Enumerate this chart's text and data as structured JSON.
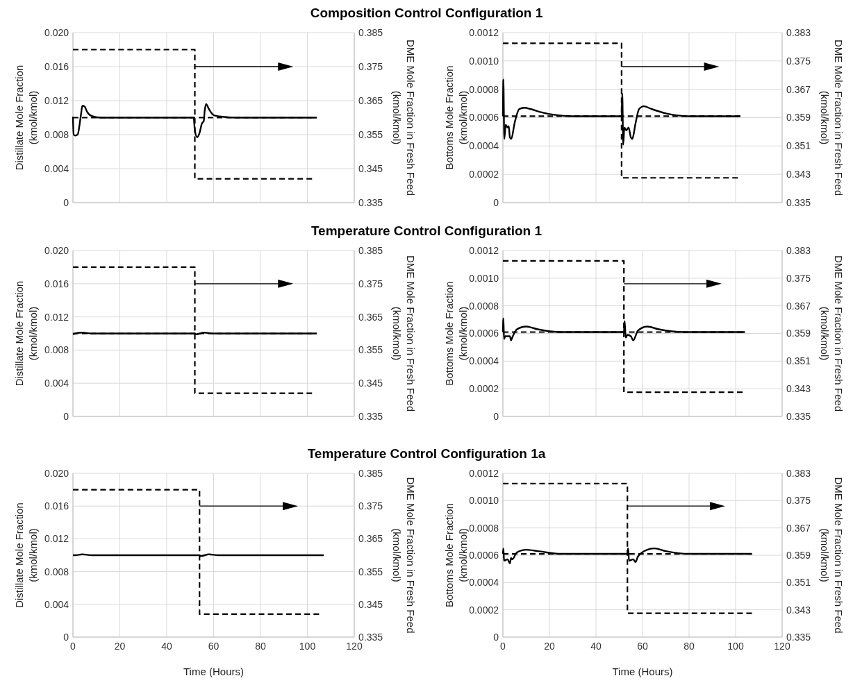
{
  "chart_data": [
    {
      "type": "line",
      "title": "Composition Control Configuration 1",
      "ylabel": "Distillate Mole Fraction (kmol/kmol)",
      "y2label": "DME Mole Fraction in Fresh Feed (kmol/kmol)",
      "xlim": [
        0,
        120
      ],
      "xticks": [
        0,
        20,
        40,
        60,
        80,
        100,
        120
      ],
      "ylim": [
        0,
        0.02
      ],
      "yticks": [
        0,
        0.004,
        0.008,
        0.012,
        0.016,
        {
          "value": 0.02,
          "label": "0.020"
        }
      ],
      "y2lim": [
        0.335,
        0.385
      ],
      "y2ticks": [
        0.335,
        0.345,
        0.355,
        0.365,
        0.375,
        0.385
      ],
      "grid": true,
      "tick_labels": "y",
      "series": [
        {
          "type": "line",
          "color": "#000000",
          "line_style": "solid",
          "x": [
            0,
            0.3,
            1,
            2,
            3,
            3.5,
            4,
            5,
            6,
            8,
            12,
            20,
            40,
            51.5,
            52,
            53,
            54,
            55,
            55.8,
            56.2,
            56.8,
            58,
            60,
            64,
            70,
            104
          ],
          "values": [
            0.0101,
            0.008,
            0.0079,
            0.008,
            0.0095,
            0.0105,
            0.0114,
            0.0113,
            0.0107,
            0.0102,
            0.01,
            0.01,
            0.01,
            0.01,
            0.0085,
            0.0077,
            0.0082,
            0.0093,
            0.0096,
            0.0108,
            0.0116,
            0.011,
            0.0103,
            0.0101,
            0.01,
            0.01
          ]
        },
        {
          "type": "line",
          "color": "#000000",
          "line_style": "dashed",
          "x": [
            0,
            102
          ],
          "values": [
            0.01,
            0.01
          ]
        },
        {
          "type": "step",
          "axis": "y2",
          "color": "#000000",
          "line_style": "dashed",
          "x": [
            0,
            52,
            102
          ],
          "values": [
            0.38,
            0.342,
            0.342
          ]
        }
      ]
    },
    {
      "type": "line",
      "ylabel": "Bottoms Mole Fraction (kmol/kmol)",
      "y2label": "DME Mole Fraction in Fresh Feed (kmol/kmol)",
      "xlim": [
        0,
        120
      ],
      "xticks": [
        0,
        20,
        40,
        60,
        80,
        100,
        120
      ],
      "ylim": [
        0,
        0.0012
      ],
      "yticks": [
        0,
        0.0002,
        0.0004,
        0.0006,
        0.0008,
        {
          "value": 0.001,
          "label": "0.0010"
        },
        {
          "value": 0.0012,
          "label": "0.0012"
        }
      ],
      "y2lim": [
        0.335,
        0.383
      ],
      "y2ticks": [
        0.335,
        0.343,
        0.351,
        0.359,
        0.367,
        0.375,
        0.383
      ],
      "grid": true,
      "tick_labels": "y",
      "series": [
        {
          "type": "line",
          "color": "#000000",
          "line_style": "solid",
          "x": [
            0,
            0.2,
            0.6,
            1.2,
            2,
            2.5,
            3,
            3.6,
            5,
            7,
            9.2,
            12,
            16,
            22,
            30,
            51,
            51.3,
            51.7,
            52.2,
            53,
            54,
            55,
            55.6,
            57,
            58.5,
            60.5,
            64,
            70,
            80,
            102
          ],
          "values": [
            0.00061,
            0.00087,
            0.00045,
            0.00055,
            0.00053,
            0.00054,
            0.00046,
            0.00045,
            0.00056,
            0.00066,
            0.00067,
            0.00066,
            0.00064,
            0.00062,
            0.00061,
            0.00061,
            0.00077,
            0.00041,
            0.00053,
            0.00051,
            0.00053,
            0.00046,
            0.00045,
            0.00056,
            0.00066,
            0.00068,
            0.00066,
            0.00063,
            0.00061,
            0.00061
          ]
        },
        {
          "type": "line",
          "color": "#000000",
          "line_style": "dashed",
          "x": [
            0,
            102
          ],
          "values": [
            0.00061,
            0.00061
          ]
        },
        {
          "type": "step",
          "axis": "y2",
          "color": "#000000",
          "line_style": "dashed",
          "x": [
            0,
            51,
            101
          ],
          "values": [
            0.38,
            0.342,
            0.342
          ]
        }
      ]
    },
    {
      "type": "line",
      "title": "Temperature Control Configuration 1",
      "ylabel": "Distillate Mole Fraction (kmol/kmol)",
      "y2label": "DME Mole Fraction in Fresh Feed (kmol/kmol)",
      "xlim": [
        0,
        120
      ],
      "xticks": [
        0,
        20,
        40,
        60,
        80,
        100,
        120
      ],
      "ylim": [
        0,
        0.02
      ],
      "yticks": [
        0,
        0.004,
        0.008,
        0.012,
        0.016,
        {
          "value": 0.02,
          "label": "0.020"
        }
      ],
      "y2lim": [
        0.335,
        0.385
      ],
      "y2ticks": [
        0.335,
        0.345,
        0.355,
        0.365,
        0.375,
        0.385
      ],
      "grid": true,
      "tick_labels": "y",
      "series": [
        {
          "type": "line",
          "color": "#000000",
          "line_style": "solid",
          "x": [
            0,
            1,
            4,
            8,
            20,
            52,
            52.5,
            56,
            60,
            70,
            104
          ],
          "values": [
            0.0099,
            0.01,
            0.0101,
            0.01,
            0.01,
            0.01,
            0.0099,
            0.0101,
            0.01,
            0.01,
            0.01
          ]
        },
        {
          "type": "line",
          "color": "#000000",
          "line_style": "dashed",
          "x": [
            0,
            102
          ],
          "values": [
            0.01,
            0.01
          ]
        },
        {
          "type": "step",
          "axis": "y2",
          "color": "#000000",
          "line_style": "dashed",
          "x": [
            0,
            52,
            102
          ],
          "values": [
            0.38,
            0.342,
            0.342
          ]
        }
      ]
    },
    {
      "type": "line",
      "ylabel": "Bottoms Mole Fraction (kmol/kmol)",
      "y2label": "DME Mole Fraction in Fresh Feed (kmol/kmol)",
      "xlim": [
        0,
        120
      ],
      "xticks": [
        0,
        20,
        40,
        60,
        80,
        100,
        120
      ],
      "ylim": [
        0,
        0.0012
      ],
      "yticks": [
        0,
        0.0002,
        0.0004,
        0.0006,
        0.0008,
        {
          "value": 0.001,
          "label": "0.0010"
        },
        {
          "value": 0.0012,
          "label": "0.0012"
        }
      ],
      "y2lim": [
        0.335,
        0.383
      ],
      "y2ticks": [
        0.335,
        0.343,
        0.351,
        0.359,
        0.367,
        0.375,
        0.383
      ],
      "grid": true,
      "tick_labels": "y",
      "series": [
        {
          "type": "line",
          "color": "#000000",
          "line_style": "solid",
          "x": [
            0,
            0.2,
            0.5,
            1,
            2,
            3,
            3.5,
            4,
            6,
            10,
            15,
            25,
            52,
            52.3,
            52.8,
            53.5,
            55,
            56,
            58,
            62,
            67,
            78,
            104
          ],
          "values": [
            0.00061,
            0.00071,
            0.00056,
            0.00058,
            0.00058,
            0.00058,
            0.00055,
            0.00057,
            0.00063,
            0.00065,
            0.00063,
            0.00061,
            0.00061,
            0.00069,
            0.00057,
            0.00059,
            0.00058,
            0.00055,
            0.00062,
            0.00065,
            0.00063,
            0.00061,
            0.00061
          ]
        },
        {
          "type": "line",
          "color": "#000000",
          "line_style": "dashed",
          "x": [
            0,
            103
          ],
          "values": [
            0.00061,
            0.00061
          ]
        },
        {
          "type": "step",
          "axis": "y2",
          "color": "#000000",
          "line_style": "dashed",
          "x": [
            0,
            52,
            103
          ],
          "values": [
            0.38,
            0.342,
            0.342
          ]
        }
      ]
    },
    {
      "type": "line",
      "title": "Temperature Control Configuration 1a",
      "xlabel": "Time (Hours)",
      "ylabel": "Distillate Mole Fraction (kmol/kmol)",
      "y2label": "DME Mole Fraction in Fresh Feed (kmol/kmol)",
      "xlim": [
        0,
        120
      ],
      "xticks": [
        0,
        20,
        40,
        60,
        80,
        100,
        120
      ],
      "ylim": [
        0,
        0.02
      ],
      "yticks": [
        0,
        0.004,
        0.008,
        0.012,
        0.016,
        {
          "value": 0.02,
          "label": "0.020"
        }
      ],
      "y2lim": [
        0.335,
        0.385
      ],
      "y2ticks": [
        0.335,
        0.345,
        0.355,
        0.365,
        0.375,
        0.385
      ],
      "grid": true,
      "series": [
        {
          "type": "line",
          "color": "#000000",
          "line_style": "solid",
          "x": [
            0,
            1,
            4,
            8,
            20,
            54,
            54.5,
            58,
            62,
            70,
            107
          ],
          "values": [
            0.01,
            0.01,
            0.0101,
            0.01,
            0.01,
            0.01,
            0.0099,
            0.0101,
            0.01,
            0.01,
            0.01
          ]
        },
        {
          "type": "step",
          "axis": "y2",
          "color": "#000000",
          "line_style": "dashed",
          "x": [
            0,
            54,
            105
          ],
          "values": [
            0.38,
            0.342,
            0.342
          ]
        }
      ]
    },
    {
      "type": "line",
      "xlabel": "Time (Hours)",
      "ylabel": "Bottoms Mole Fraction (kmol/kmol)",
      "y2label": "DME Mole Fraction in Fresh Feed (kmol/kmol)",
      "xlim": [
        0,
        120
      ],
      "xticks": [
        0,
        20,
        40,
        60,
        80,
        100,
        120
      ],
      "ylim": [
        0,
        0.0012
      ],
      "yticks": [
        0,
        0.0002,
        0.0004,
        0.0006,
        0.0008,
        {
          "value": 0.001,
          "label": "0.0010"
        },
        {
          "value": 0.0012,
          "label": "0.0012"
        }
      ],
      "y2lim": [
        0.335,
        0.383
      ],
      "y2ticks": [
        0.335,
        0.343,
        0.351,
        0.359,
        0.367,
        0.375,
        0.383
      ],
      "grid": true,
      "series": [
        {
          "type": "line",
          "color": "#000000",
          "line_style": "solid",
          "x": [
            0,
            0.2,
            0.5,
            2,
            3,
            3.5,
            4,
            6,
            10,
            15,
            25,
            53.5,
            53.8,
            54.2,
            56,
            57,
            58,
            62,
            65,
            70,
            80,
            107
          ],
          "values": [
            0.00061,
            0.00065,
            0.00056,
            0.00057,
            0.00054,
            0.00058,
            0.00057,
            0.00062,
            0.00064,
            0.00063,
            0.00061,
            0.00061,
            0.00065,
            0.00056,
            0.00057,
            0.00055,
            0.00059,
            0.00064,
            0.00065,
            0.00063,
            0.00061,
            0.00061
          ]
        },
        {
          "type": "line",
          "color": "#000000",
          "line_style": "dashed",
          "x": [
            0,
            107
          ],
          "values": [
            0.00061,
            0.00061
          ]
        },
        {
          "type": "step",
          "axis": "y2",
          "color": "#000000",
          "line_style": "dashed",
          "x": [
            0,
            53.5,
            107
          ],
          "values": [
            0.38,
            0.342,
            0.342
          ]
        }
      ]
    }
  ]
}
